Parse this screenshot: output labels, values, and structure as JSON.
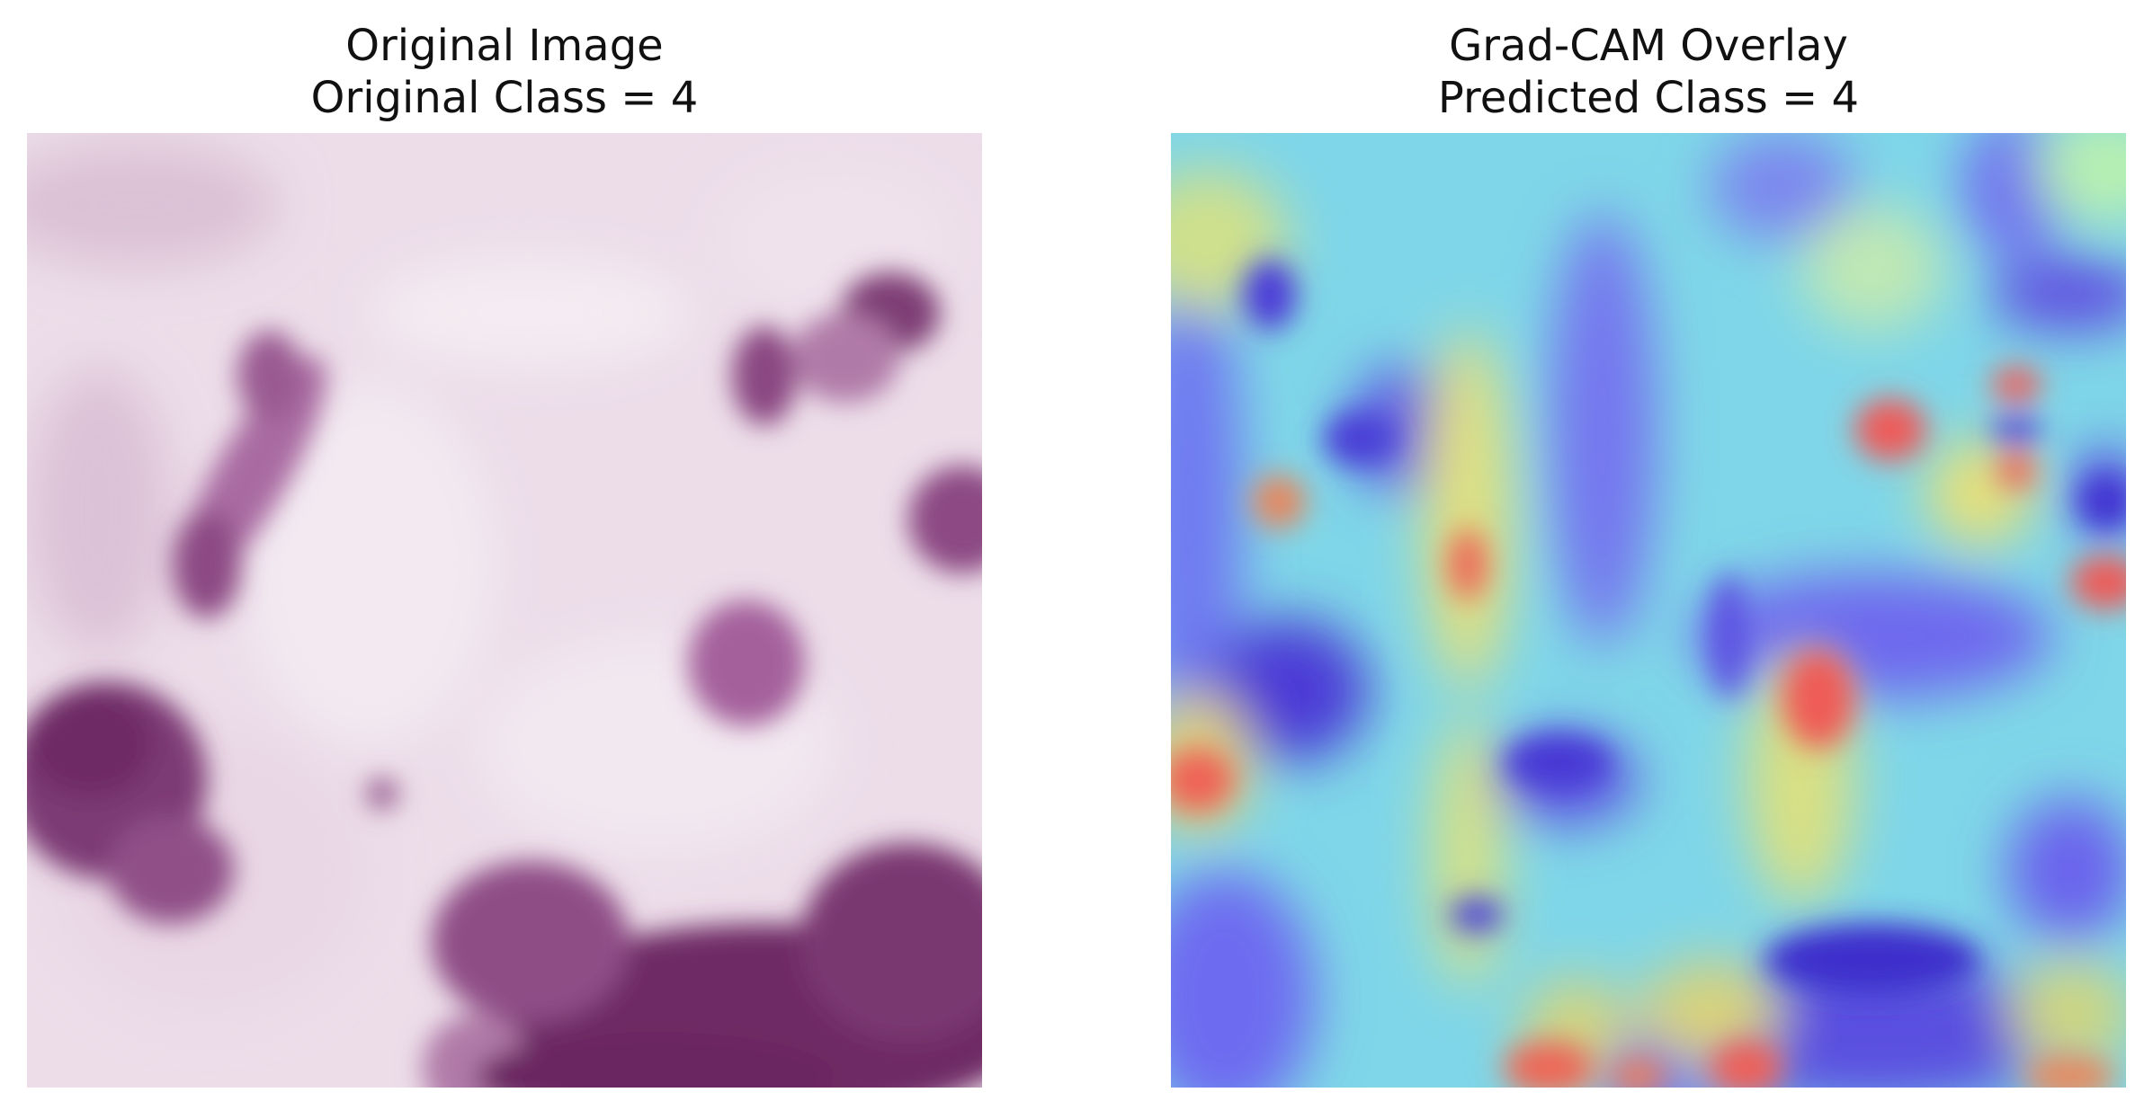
{
  "panels": [
    {
      "title_line1": "Original Image",
      "title_line2": "Original Class = 4"
    },
    {
      "title_line1": "Grad-CAM Overlay",
      "title_line2": "Predicted Class = 4"
    }
  ],
  "colors": {
    "tissue_background": "#ecdde9",
    "stain_dark": "#6e2b65",
    "stain_mid": "#a4619b",
    "cam_blue": "#6f6df0",
    "cam_cyan": "#7fe0e4",
    "cam_yellow": "#e8e07a",
    "cam_red": "#ef5a58"
  }
}
